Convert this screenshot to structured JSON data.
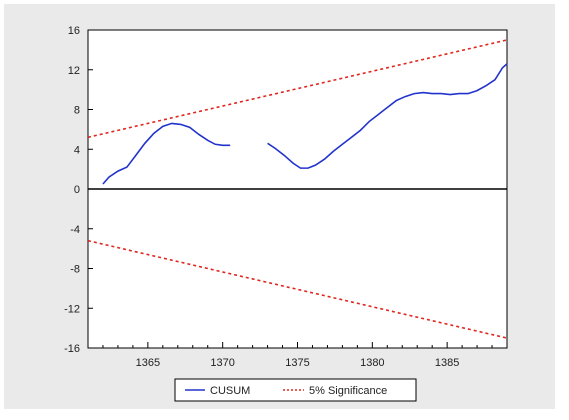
{
  "chart_data": {
    "type": "line",
    "title": "",
    "xlabel": "",
    "ylabel": "",
    "xlim": [
      1361,
      1389
    ],
    "ylim": [
      -16,
      16
    ],
    "x_ticks": [
      1365,
      1370,
      1375,
      1380,
      1385
    ],
    "x_tick_labels": [
      "1365",
      "1370",
      "1375",
      "1380",
      "1385"
    ],
    "y_ticks": [
      16,
      12,
      8,
      4,
      0,
      -4,
      -8,
      -12,
      -16
    ],
    "y_tick_labels": [
      "16",
      "12",
      "8",
      "4",
      "0",
      "-4",
      "-8",
      "-12",
      "-16"
    ],
    "grid": false,
    "legend_position": "bottom",
    "zero_line": true,
    "series": [
      {
        "name": "CUSUM",
        "color": "#2233cc",
        "style": "solid",
        "points": [
          [
            1362,
            0.5
          ],
          [
            1362.4,
            1.2
          ],
          [
            1363,
            1.8
          ],
          [
            1363.6,
            2.2
          ],
          [
            1364.2,
            3.4
          ],
          [
            1364.8,
            4.6
          ],
          [
            1365.4,
            5.6
          ],
          [
            1366,
            6.3
          ],
          [
            1366.6,
            6.6
          ],
          [
            1367.2,
            6.5
          ],
          [
            1367.8,
            6.2
          ],
          [
            1368.4,
            5.5
          ],
          [
            1369,
            4.9
          ],
          [
            1369.5,
            4.5
          ],
          [
            1370,
            4.4
          ],
          [
            1370.5,
            4.4
          ]
        ],
        "points2": [
          [
            1373,
            4.6
          ],
          [
            1373.5,
            4.1
          ],
          [
            1374.1,
            3.4
          ],
          [
            1374.7,
            2.6
          ],
          [
            1375.2,
            2.1
          ],
          [
            1375.7,
            2.1
          ],
          [
            1376.2,
            2.4
          ],
          [
            1376.8,
            3.0
          ],
          [
            1377.4,
            3.8
          ],
          [
            1378,
            4.5
          ],
          [
            1378.6,
            5.2
          ],
          [
            1379.2,
            5.9
          ],
          [
            1379.8,
            6.8
          ],
          [
            1380.4,
            7.5
          ],
          [
            1381,
            8.2
          ],
          [
            1381.6,
            8.9
          ],
          [
            1382.2,
            9.3
          ],
          [
            1382.8,
            9.6
          ],
          [
            1383.4,
            9.7
          ],
          [
            1384,
            9.6
          ],
          [
            1384.6,
            9.6
          ],
          [
            1385.2,
            9.5
          ],
          [
            1385.8,
            9.6
          ],
          [
            1386.4,
            9.6
          ],
          [
            1387,
            9.9
          ],
          [
            1387.6,
            10.4
          ],
          [
            1388.2,
            11.0
          ],
          [
            1388.7,
            12.2
          ],
          [
            1389,
            12.6
          ]
        ]
      },
      {
        "name": "5% Significance",
        "color": "#e0261f",
        "style": "dashed",
        "points": [
          [
            1361,
            5.2
          ],
          [
            1389,
            15.0
          ]
        ],
        "points2": [
          [
            1361,
            -5.2
          ],
          [
            1389,
            -15.0
          ]
        ]
      }
    ],
    "legend_entries": [
      "CUSUM",
      "5% Significance"
    ]
  }
}
